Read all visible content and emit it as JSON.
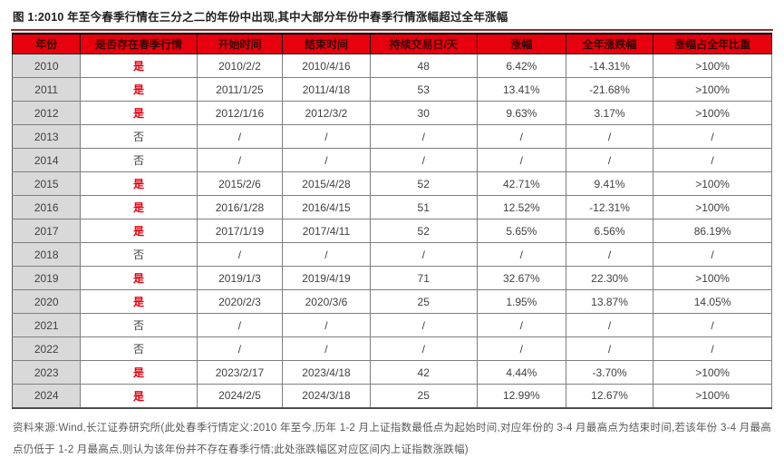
{
  "title": "图 1:2010 年至今春季行情在三分之二的年份中出现,其中大部分年份中春季行情涨幅超过全年涨幅",
  "colors": {
    "header_bg": "#e7000e",
    "header_text": "#330505",
    "accent_red": "#e7000e",
    "year_column_bg": "#d9d9d9",
    "body_text": "#404040",
    "title_rule": "#8c342b"
  },
  "table": {
    "headers": [
      "年份",
      "是否存在春季行情",
      "开始时间",
      "结束时间",
      "持续交易日/天",
      "涨幅",
      "全年涨跌幅",
      "涨幅占全年比重"
    ],
    "rows": [
      {
        "year": "2010",
        "has_spring": "是",
        "start": "2010/2/2",
        "end": "2010/4/16",
        "days": "48",
        "gain": "6.42%",
        "year_change": "-14.31%",
        "ratio": ">100%"
      },
      {
        "year": "2011",
        "has_spring": "是",
        "start": "2011/1/25",
        "end": "2011/4/18",
        "days": "53",
        "gain": "13.41%",
        "year_change": "-21.68%",
        "ratio": ">100%"
      },
      {
        "year": "2012",
        "has_spring": "是",
        "start": "2012/1/16",
        "end": "2012/3/2",
        "days": "30",
        "gain": "9.63%",
        "year_change": "3.17%",
        "ratio": ">100%"
      },
      {
        "year": "2013",
        "has_spring": "否",
        "start": "/",
        "end": "/",
        "days": "/",
        "gain": "/",
        "year_change": "/",
        "ratio": "/"
      },
      {
        "year": "2014",
        "has_spring": "否",
        "start": "/",
        "end": "/",
        "days": "/",
        "gain": "/",
        "year_change": "/",
        "ratio": "/"
      },
      {
        "year": "2015",
        "has_spring": "是",
        "start": "2015/2/6",
        "end": "2015/4/28",
        "days": "52",
        "gain": "42.71%",
        "year_change": "9.41%",
        "ratio": ">100%"
      },
      {
        "year": "2016",
        "has_spring": "是",
        "start": "2016/1/28",
        "end": "2016/4/15",
        "days": "51",
        "gain": "12.52%",
        "year_change": "-12.31%",
        "ratio": ">100%"
      },
      {
        "year": "2017",
        "has_spring": "是",
        "start": "2017/1/19",
        "end": "2017/4/11",
        "days": "52",
        "gain": "5.65%",
        "year_change": "6.56%",
        "ratio": "86.19%"
      },
      {
        "year": "2018",
        "has_spring": "否",
        "start": "/",
        "end": "/",
        "days": "/",
        "gain": "/",
        "year_change": "/",
        "ratio": "/"
      },
      {
        "year": "2019",
        "has_spring": "是",
        "start": "2019/1/3",
        "end": "2019/4/19",
        "days": "71",
        "gain": "32.67%",
        "year_change": "22.30%",
        "ratio": ">100%"
      },
      {
        "year": "2020",
        "has_spring": "是",
        "start": "2020/2/3",
        "end": "2020/3/6",
        "days": "25",
        "gain": "1.95%",
        "year_change": "13.87%",
        "ratio": "14.05%"
      },
      {
        "year": "2021",
        "has_spring": "否",
        "start": "/",
        "end": "/",
        "days": "/",
        "gain": "/",
        "year_change": "/",
        "ratio": "/"
      },
      {
        "year": "2022",
        "has_spring": "否",
        "start": "/",
        "end": "/",
        "days": "/",
        "gain": "/",
        "year_change": "/",
        "ratio": "/"
      },
      {
        "year": "2023",
        "has_spring": "是",
        "start": "2023/2/17",
        "end": "2023/4/18",
        "days": "42",
        "gain": "4.44%",
        "year_change": "-3.70%",
        "ratio": ">100%"
      },
      {
        "year": "2024",
        "has_spring": "是",
        "start": "2024/2/5",
        "end": "2024/3/18",
        "days": "25",
        "gain": "12.99%",
        "year_change": "12.67%",
        "ratio": ">100%"
      }
    ]
  },
  "footer": {
    "source": "资料来源:Wind,长江证券研究所(此处春季行情定义:2010 年至今,历年 1-2 月上证指数最低点为起始时间,对应年份的 3-4 月最高点为结束时间,若该年份 3-4 月最高点仍低于 1-2 月最高点,则认为该年份并不存在春季行情;此处涨跌幅区对应区间内上证指数涨跌幅)"
  }
}
